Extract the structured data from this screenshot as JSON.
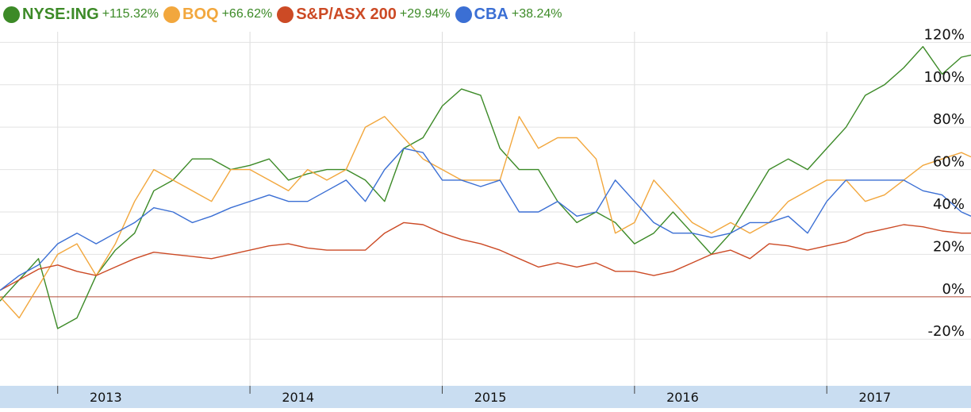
{
  "legend": [
    {
      "name": "NYSE:ING",
      "change": "+115.32%",
      "color": "#3c8a27"
    },
    {
      "name": "BOQ",
      "change": "+66.62%",
      "color": "#f2a73d"
    },
    {
      "name": "S&P/ASX 200",
      "change": "+29.94%",
      "color": "#cc4a25"
    },
    {
      "name": "CBA",
      "change": "+38.24%",
      "color": "#3b6fd4"
    }
  ],
  "change_color": "#3c8a27",
  "chart_data": {
    "type": "line",
    "x_unit": "year",
    "xlim": [
      2012.45,
      2017.5
    ],
    "ylim": [
      -42,
      125
    ],
    "y_ticks": [
      120,
      100,
      80,
      60,
      40,
      20,
      0,
      -20
    ],
    "y_tick_labels": [
      "120%",
      "100%",
      "80%",
      "60%",
      "40%",
      "20%",
      "0%",
      "-20%"
    ],
    "x_tick_labels": [
      "2013",
      "2014",
      "2015",
      "2016",
      "2017"
    ],
    "x_label_positions": [
      2013.0,
      2014.0,
      2015.0,
      2016.0,
      2017.0
    ],
    "x_gridlines": [
      2012.75,
      2013.75,
      2014.75,
      2015.75,
      2016.75
    ],
    "grid": true,
    "legend_position": "top-left",
    "series": [
      {
        "name": "NYSE:ING",
        "color": "#3c8a27",
        "x": [
          2012.45,
          2012.55,
          2012.65,
          2012.75,
          2012.85,
          2012.95,
          2013.05,
          2013.15,
          2013.25,
          2013.35,
          2013.45,
          2013.55,
          2013.65,
          2013.75,
          2013.85,
          2013.95,
          2014.05,
          2014.15,
          2014.25,
          2014.35,
          2014.45,
          2014.55,
          2014.65,
          2014.75,
          2014.85,
          2014.95,
          2015.05,
          2015.15,
          2015.25,
          2015.35,
          2015.45,
          2015.55,
          2015.65,
          2015.75,
          2015.85,
          2015.95,
          2016.05,
          2016.15,
          2016.25,
          2016.35,
          2016.45,
          2016.55,
          2016.65,
          2016.75,
          2016.85,
          2016.95,
          2017.05,
          2017.15,
          2017.25,
          2017.35,
          2017.45,
          2017.5
        ],
        "y": [
          -2,
          8,
          18,
          -15,
          -10,
          10,
          22,
          30,
          50,
          55,
          65,
          65,
          60,
          62,
          65,
          55,
          58,
          60,
          60,
          55,
          45,
          70,
          75,
          90,
          98,
          95,
          70,
          60,
          60,
          45,
          35,
          40,
          35,
          25,
          30,
          40,
          30,
          20,
          30,
          45,
          60,
          65,
          60,
          70,
          80,
          95,
          100,
          108,
          118,
          105,
          113,
          114
        ]
      },
      {
        "name": "BOQ",
        "color": "#f2a73d",
        "x": [
          2012.45,
          2012.55,
          2012.65,
          2012.75,
          2012.85,
          2012.95,
          2013.05,
          2013.15,
          2013.25,
          2013.35,
          2013.45,
          2013.55,
          2013.65,
          2013.75,
          2013.85,
          2013.95,
          2014.05,
          2014.15,
          2014.25,
          2014.35,
          2014.45,
          2014.55,
          2014.65,
          2014.75,
          2014.85,
          2014.95,
          2015.05,
          2015.15,
          2015.25,
          2015.35,
          2015.45,
          2015.55,
          2015.65,
          2015.75,
          2015.85,
          2015.95,
          2016.05,
          2016.15,
          2016.25,
          2016.35,
          2016.45,
          2016.55,
          2016.65,
          2016.75,
          2016.85,
          2016.95,
          2017.05,
          2017.15,
          2017.25,
          2017.35,
          2017.45,
          2017.5
        ],
        "y": [
          0,
          -10,
          5,
          20,
          25,
          10,
          25,
          45,
          60,
          55,
          50,
          45,
          60,
          60,
          55,
          50,
          60,
          55,
          60,
          80,
          85,
          75,
          65,
          60,
          55,
          55,
          55,
          85,
          70,
          75,
          75,
          65,
          30,
          35,
          55,
          45,
          35,
          30,
          35,
          30,
          35,
          45,
          50,
          55,
          55,
          45,
          48,
          55,
          62,
          65,
          68,
          66
        ]
      },
      {
        "name": "S&P/ASX 200",
        "color": "#cc4a25",
        "x": [
          2012.45,
          2012.55,
          2012.65,
          2012.75,
          2012.85,
          2012.95,
          2013.05,
          2013.15,
          2013.25,
          2013.35,
          2013.45,
          2013.55,
          2013.65,
          2013.75,
          2013.85,
          2013.95,
          2014.05,
          2014.15,
          2014.25,
          2014.35,
          2014.45,
          2014.55,
          2014.65,
          2014.75,
          2014.85,
          2014.95,
          2015.05,
          2015.15,
          2015.25,
          2015.35,
          2015.45,
          2015.55,
          2015.65,
          2015.75,
          2015.85,
          2015.95,
          2016.05,
          2016.15,
          2016.25,
          2016.35,
          2016.45,
          2016.55,
          2016.65,
          2016.75,
          2016.85,
          2016.95,
          2017.05,
          2017.15,
          2017.25,
          2017.35,
          2017.45,
          2017.5
        ],
        "y": [
          3,
          8,
          13,
          15,
          12,
          10,
          14,
          18,
          21,
          20,
          19,
          18,
          20,
          22,
          24,
          25,
          23,
          22,
          22,
          22,
          30,
          35,
          34,
          30,
          27,
          25,
          22,
          18,
          14,
          16,
          14,
          16,
          12,
          12,
          10,
          12,
          16,
          20,
          22,
          18,
          25,
          24,
          22,
          24,
          26,
          30,
          32,
          34,
          33,
          31,
          30,
          30
        ]
      },
      {
        "name": "CBA",
        "color": "#3b6fd4",
        "x": [
          2012.45,
          2012.55,
          2012.65,
          2012.75,
          2012.85,
          2012.95,
          2013.05,
          2013.15,
          2013.25,
          2013.35,
          2013.45,
          2013.55,
          2013.65,
          2013.75,
          2013.85,
          2013.95,
          2014.05,
          2014.15,
          2014.25,
          2014.35,
          2014.45,
          2014.55,
          2014.65,
          2014.75,
          2014.85,
          2014.95,
          2015.05,
          2015.15,
          2015.25,
          2015.35,
          2015.45,
          2015.55,
          2015.65,
          2015.75,
          2015.85,
          2015.95,
          2016.05,
          2016.15,
          2016.25,
          2016.35,
          2016.45,
          2016.55,
          2016.65,
          2016.75,
          2016.85,
          2016.95,
          2017.05,
          2017.15,
          2017.25,
          2017.35,
          2017.45,
          2017.5
        ],
        "y": [
          3,
          10,
          15,
          25,
          30,
          25,
          30,
          35,
          42,
          40,
          35,
          38,
          42,
          45,
          48,
          45,
          45,
          50,
          55,
          45,
          60,
          70,
          68,
          55,
          55,
          52,
          55,
          40,
          40,
          45,
          38,
          40,
          55,
          45,
          35,
          30,
          30,
          28,
          30,
          35,
          35,
          38,
          30,
          45,
          55,
          55,
          55,
          55,
          50,
          48,
          40,
          38
        ]
      }
    ]
  }
}
